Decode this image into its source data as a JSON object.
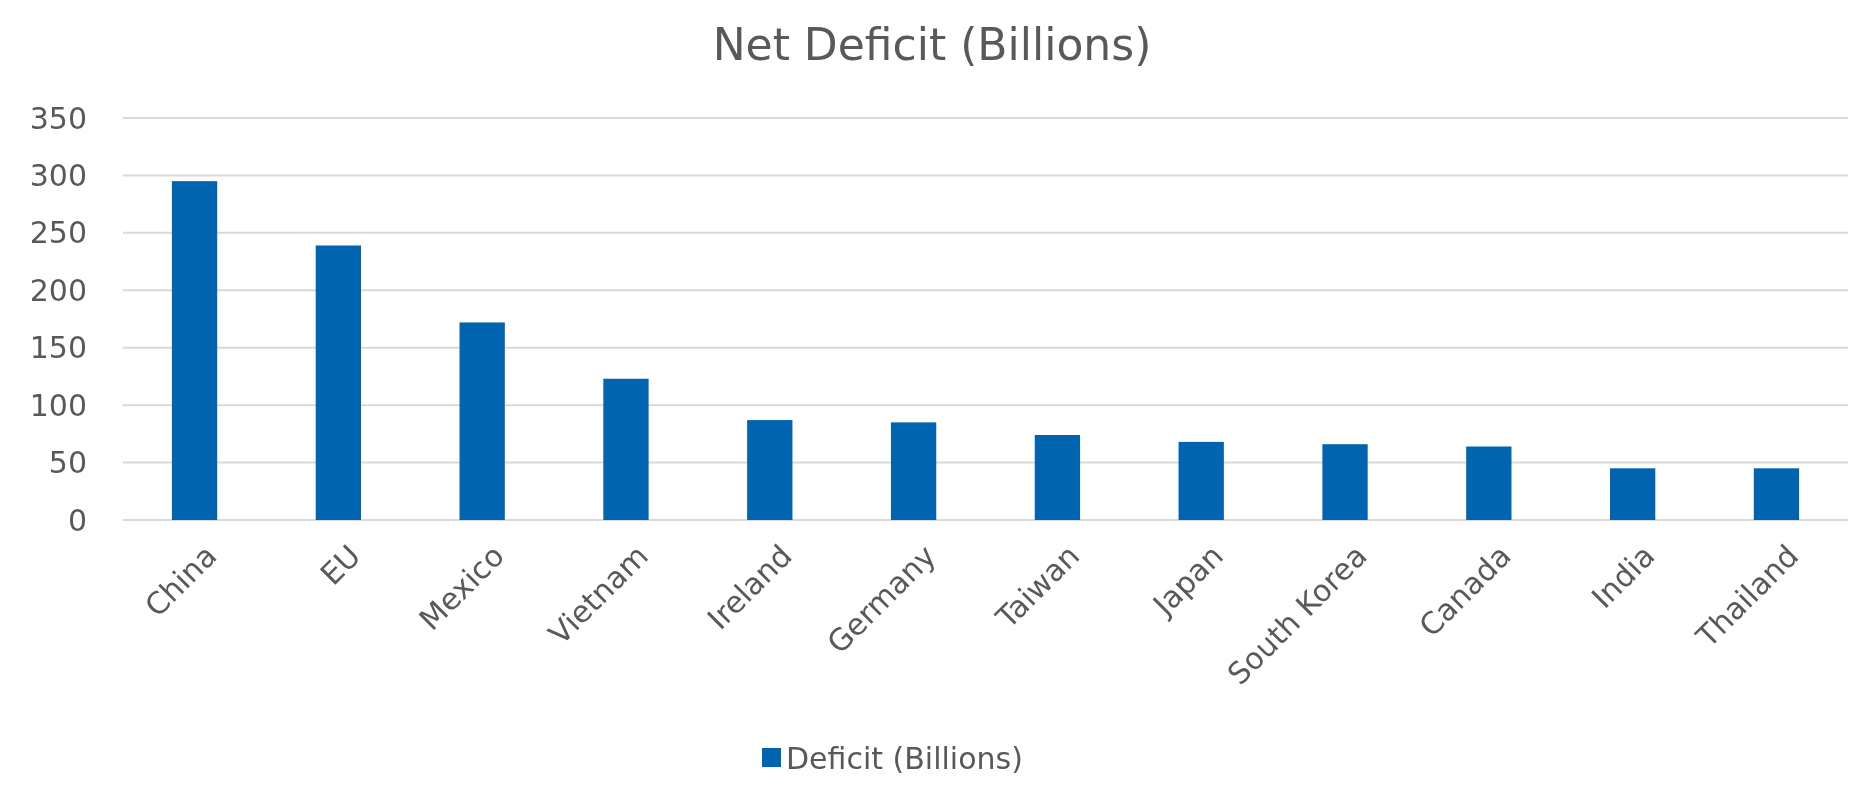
{
  "chart_data": {
    "type": "bar",
    "title": "Net Deficit (Billions)",
    "categories": [
      "China",
      "EU",
      "Mexico",
      "Vietnam",
      "Ireland",
      "Germany",
      "Taiwan",
      "Japan",
      "South Korea",
      "Canada",
      "India",
      "Thailand"
    ],
    "series": [
      {
        "name": "Deficit (Billions)",
        "color": "#0064b0",
        "values": [
          295,
          239,
          172,
          123,
          87,
          85,
          74,
          68,
          66,
          64,
          45,
          45
        ]
      }
    ],
    "ylim": [
      0,
      350
    ],
    "yticks": [
      0,
      50,
      100,
      150,
      200,
      250,
      300,
      350
    ],
    "grid": "y",
    "legend": "bottom"
  }
}
